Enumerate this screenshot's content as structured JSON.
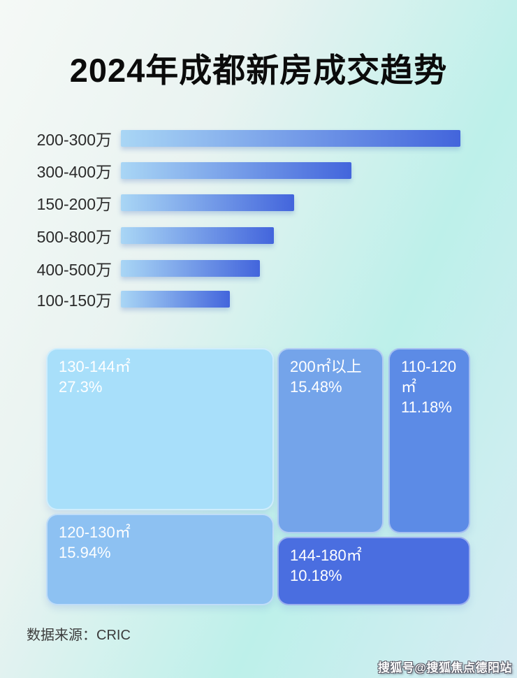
{
  "page": {
    "title": "2024年成都新房成交趋势",
    "footer": {
      "source_label": "数据来源：CRIC"
    },
    "watermark": "搜狐号@搜狐焦点德阳站",
    "background_colors": {
      "top_left": "#f5f9f6",
      "right_mid": "#bdf0ea",
      "bottom": "#d6ecf3"
    }
  },
  "chart_data": [
    {
      "type": "bar",
      "orientation": "horizontal",
      "title": "2024年成都新房成交趋势",
      "categories": [
        "200-300万",
        "300-400万",
        "150-200万",
        "500-800万",
        "400-500万",
        "100-150万"
      ],
      "values_pct_of_max": [
        100,
        68,
        51,
        45,
        41,
        32
      ],
      "value_labels_shown": false,
      "axis_shown": false,
      "bar_gradient": [
        "#a9d6f5",
        "#4365dc"
      ],
      "label_color": "#2b2b2b"
    },
    {
      "type": "treemap",
      "items": [
        {
          "label": "130-144㎡",
          "value_pct": 27.3,
          "pct_label": "27.3%",
          "color": "#a8dffa"
        },
        {
          "label": "120-130㎡",
          "value_pct": 15.94,
          "pct_label": "15.94%",
          "color": "#8dc1f2"
        },
        {
          "label": "200㎡以上",
          "value_pct": 15.48,
          "pct_label": "15.48%",
          "color": "#74a4ea"
        },
        {
          "label": "110-120㎡",
          "value_pct": 11.18,
          "pct_label": "11.18%",
          "color": "#5c8be6"
        },
        {
          "label": "144-180㎡",
          "value_pct": 10.18,
          "pct_label": "10.18%",
          "color": "#4a6ee0"
        }
      ],
      "text_color": "#ffffff"
    }
  ]
}
